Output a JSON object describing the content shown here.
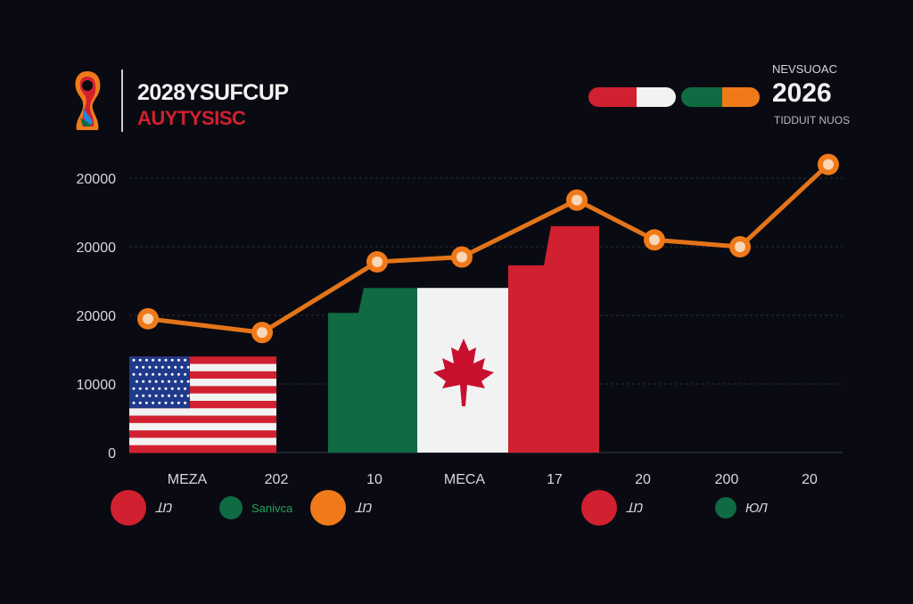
{
  "header": {
    "title": "2028YSUFCUP",
    "subtitle": "AUYTYSISC",
    "year_top": "NEVSUOAC",
    "year": "2026",
    "year_sub": "TIDDUIT NUOS"
  },
  "colors": {
    "red": "#d1202f",
    "white": "#f2f2f2",
    "green": "#0e6b42",
    "orange": "#f07a1a",
    "grid": "#2a2c36",
    "background": "#0a0b12"
  },
  "chart_data": {
    "type": "bar+line",
    "y_tick_labels": [
      "0",
      "10000",
      "20000",
      "20000",
      "20000"
    ],
    "x_tick_labels": [
      "MEZA",
      "202",
      "10",
      "MEСA",
      "17",
      "20",
      "200",
      "20"
    ],
    "ylim": [
      0,
      40000
    ],
    "grid": true,
    "bars": [
      {
        "name": "usa-flag",
        "value": 14000
      },
      {
        "name": "mexico-green",
        "value": 24000
      },
      {
        "name": "canada-flag",
        "value": 24000
      },
      {
        "name": "red-bar",
        "value": 33000
      }
    ],
    "line_values": [
      19500,
      17500,
      27800,
      28500,
      36800,
      31000,
      30000,
      42000
    ],
    "legend_placement": "bottom"
  },
  "legend": [
    {
      "label": "ꞱŊ",
      "color": "#d1202f",
      "size": 40
    },
    {
      "label": "Sanivca",
      "color": "#0e6b42",
      "size": 26
    },
    {
      "label": "ꞱŊ",
      "color": "#f07a1a",
      "size": 40
    },
    {
      "label": "ꞱŊ",
      "color": "#d1202f",
      "size": 40
    },
    {
      "label": "ЮЛ",
      "color": "#0e6b42",
      "size": 24
    }
  ]
}
